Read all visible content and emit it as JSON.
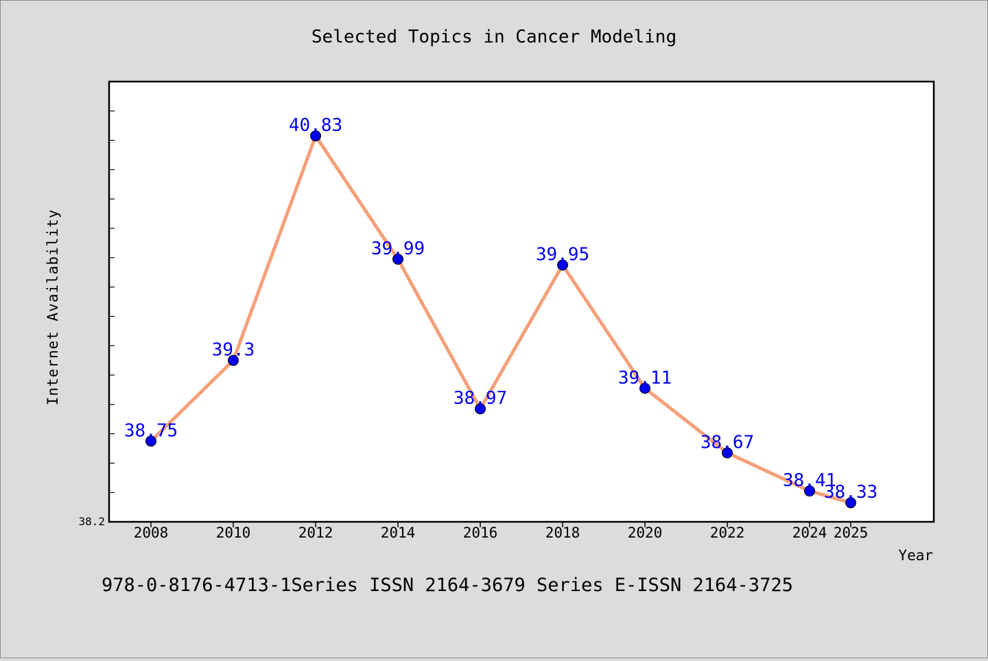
{
  "chart_data": {
    "type": "line",
    "title": "Selected Topics in Cancer Modeling",
    "xlabel": "Year",
    "ylabel": "Internet Availability",
    "x": [
      "2008",
      "2010",
      "2012",
      "2014",
      "2016",
      "2018",
      "2020",
      "2022",
      "2024",
      "2025"
    ],
    "series": [
      {
        "values": [
          38.75,
          39.3,
          40.83,
          39.99,
          38.97,
          39.95,
          39.11,
          38.67,
          38.41,
          38.33
        ],
        "labels": [
          "38.75",
          "39.3",
          "40.83",
          "39.99",
          "38.97",
          "39.95",
          "39.11",
          "38.67",
          "38.41",
          "38.33"
        ],
        "line_color": "#f4a07a",
        "marker_color": "#0000ee",
        "label_color": "#0000ee"
      }
    ],
    "y_tick_labels": [
      "38.2"
    ],
    "ylim": [
      38.2,
      41.2
    ],
    "grid": false,
    "legend": "none"
  },
  "footer": {
    "text": "978-0-8176-4713-1Series ISSN 2164-3679 Series E-ISSN 2164-3725"
  },
  "colors": {
    "background": "#dcdcdc",
    "plot_background": "#ffffff",
    "axis": "#000000",
    "text": "#000000"
  }
}
